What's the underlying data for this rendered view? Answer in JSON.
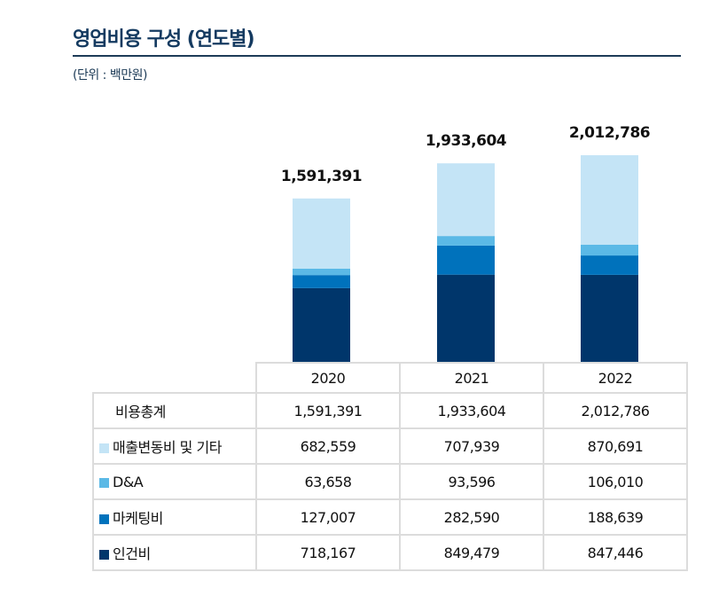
{
  "header": {
    "title": "영업비용 구성 (연도별)",
    "unit": "(단위 : 백만원)"
  },
  "chart_data": {
    "type": "bar",
    "stacked": true,
    "categories": [
      "2020",
      "2021",
      "2022"
    ],
    "series": [
      {
        "name": "인건비",
        "color": "#00366b",
        "values": [
          718167,
          849479,
          847446
        ]
      },
      {
        "name": "마케팅비",
        "color": "#0072bc",
        "values": [
          127007,
          282590,
          188639
        ]
      },
      {
        "name": "D&A",
        "color": "#5bb9e6",
        "values": [
          63658,
          93596,
          106010
        ]
      },
      {
        "name": "매출변동비 및 기타",
        "color": "#c4e4f6",
        "values": [
          682559,
          707939,
          870691
        ]
      }
    ],
    "totals_label": "비용총계",
    "totals": [
      "1,591,391",
      "1,933,604",
      "2,012,786"
    ],
    "table_values": [
      [
        "682,559",
        "707,939",
        "870,691"
      ],
      [
        "63,658",
        "93,596",
        "106,010"
      ],
      [
        "127,007",
        "282,590",
        "188,639"
      ],
      [
        "718,167",
        "849,479",
        "847,446"
      ]
    ],
    "grid": false
  }
}
